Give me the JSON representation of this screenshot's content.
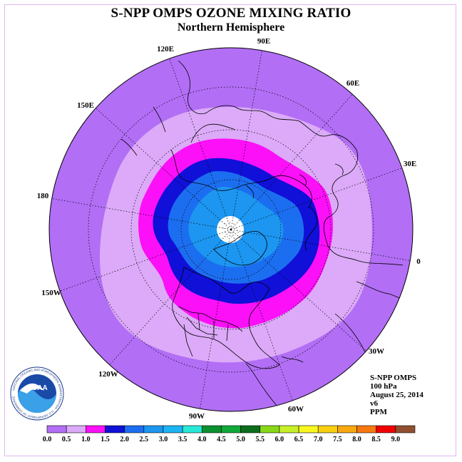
{
  "title": "S-NPP OMPS OZONE MIXING RATIO",
  "subtitle": "Northern Hemisphere",
  "longitude_labels": [
    "90E",
    "60E",
    "30E",
    "0",
    "30W",
    "60W",
    "90W",
    "120W",
    "150W",
    "180",
    "150E",
    "120E"
  ],
  "info": {
    "instrument": "S-NPP OMPS",
    "level": "100 hPa",
    "date": "August 25, 2014",
    "version": "v6",
    "units": "PPM"
  },
  "logo": {
    "text": "NOAA",
    "ring_text": "NATIONAL OCEANIC AND ATMOSPHERIC ADMINISTRATION · U.S. DEPARTMENT OF COMMERCE"
  },
  "colorbar": {
    "ticks": [
      "0.0",
      "0.5",
      "1.0",
      "1.5",
      "2.0",
      "2.5",
      "3.0",
      "3.5",
      "4.0",
      "4.5",
      "5.0",
      "5.5",
      "6.0",
      "6.5",
      "7.0",
      "7.5",
      "8.0",
      "8.5",
      "9.0"
    ],
    "colors": [
      "#b26ef5",
      "#dcaaf8",
      "#fb10f8",
      "#1010d8",
      "#1c6ef0",
      "#1c96f0",
      "#1cb4f4",
      "#28e8d8",
      "#0c9030",
      "#10a838",
      "#0c6e1c",
      "#88d818",
      "#c8f028",
      "#f8f820",
      "#f8d010",
      "#f8a810",
      "#f87810",
      "#f00000",
      "#905030"
    ]
  },
  "map": {
    "projection": "polar stereographic",
    "hemisphere": "Northern",
    "field_levels_ppm": [
      {
        "min": 0.0,
        "max": 0.5,
        "color": "#b26ef5"
      },
      {
        "min": 0.5,
        "max": 1.0,
        "color": "#dcaaf8"
      },
      {
        "min": 1.0,
        "max": 1.5,
        "color": "#fb10f8"
      },
      {
        "min": 1.5,
        "max": 2.0,
        "color": "#1010d8"
      },
      {
        "min": 2.0,
        "max": 2.5,
        "color": "#1c6ef0"
      },
      {
        "min": 2.5,
        "max": 3.0,
        "color": "#1c96f0"
      }
    ]
  }
}
